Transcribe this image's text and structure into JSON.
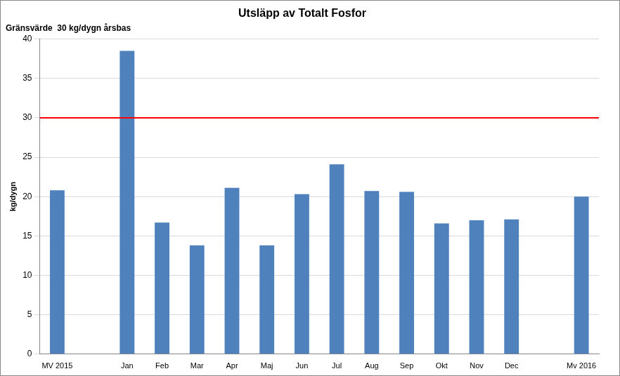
{
  "chart_data": {
    "type": "bar",
    "title": "Utsläpp av Totalt Fosfor",
    "subtitle": "Gränsvärde  30 kg/dygn årsbas",
    "y_label": "kg/dygn",
    "categories": [
      "MV 2015",
      null,
      "Jan",
      "Feb",
      "Mar",
      "Apr",
      "Maj",
      "Jun",
      "Jul",
      "Aug",
      "Sep",
      "Okt",
      "Nov",
      "Dec",
      null,
      "Mv 2016"
    ],
    "values": [
      20.8,
      null,
      38.5,
      16.7,
      13.8,
      21.1,
      13.8,
      20.3,
      24.1,
      20.7,
      20.6,
      16.6,
      17.0,
      17.1,
      null,
      20.0
    ],
    "color": "#4f81bd",
    "ylim": [
      0,
      40
    ],
    "yticks": [
      0,
      5,
      10,
      15,
      20,
      25,
      30,
      35,
      40
    ],
    "grid": true,
    "reference_line": {
      "value": 30,
      "color": "#ff0000"
    }
  }
}
